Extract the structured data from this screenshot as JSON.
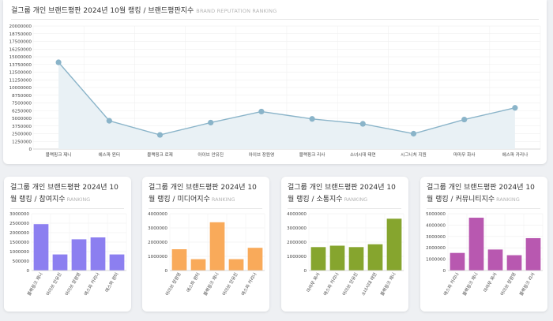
{
  "main": {
    "title": "걸그룹 개인 브랜드평판 2024년 10월 랭킹 / 브랜드평판지수",
    "subtitle": "BRAND REPUTATION RANKING"
  },
  "panels": [
    {
      "title": "걸그룹 개인 브랜드평판 2024년 10월 랭킹 / 참여지수",
      "subtitle": "RANKING"
    },
    {
      "title": "걸그룹 개인 브랜드평판 2024년 10월 랭킹 / 미디어지수",
      "subtitle": "RANKING"
    },
    {
      "title": "걸그룹 개인 브랜드평판 2024년 10월 랭킹 / 소통지수",
      "subtitle": "RANKING"
    },
    {
      "title": "걸그룹 개인 브랜드평판 2024년 10월 랭킹 / 커뮤니티지수",
      "subtitle": "RANKING"
    }
  ],
  "chart_data": [
    {
      "type": "area",
      "title": "걸그룹 개인 브랜드평판 2024년 10월 랭킹 / 브랜드평판지수",
      "categories": [
        "블랙핑크 제니",
        "에스파 윈터",
        "블랙핑크 로제",
        "아이브 안유진",
        "아이브 장원영",
        "블랙핑크 리사",
        "소녀시대 태연",
        "시그니처 지원",
        "마마무 화사",
        "에스파 카리나"
      ],
      "values": [
        14100000,
        4600000,
        2300000,
        4300000,
        6100000,
        4900000,
        4100000,
        2500000,
        4800000,
        6700000
      ],
      "ylim": [
        0,
        20000000
      ],
      "yticks": [
        0,
        1250000,
        2500000,
        3750000,
        5000000,
        6250000,
        7500000,
        8750000,
        10000000,
        11250000,
        12500000,
        13750000,
        15000000,
        16250000,
        17500000,
        18750000,
        20000000
      ],
      "grid": true,
      "color": "#8ab4c9",
      "fill": "#e9f1f5"
    },
    {
      "type": "bar",
      "title": "걸그룹 개인 브랜드평판 2024년 10월 랭킹 / 참여지수",
      "categories": [
        "블랙핑크 제니",
        "아이브 안유진",
        "아이브 장원영",
        "에스파 카리나",
        "에스파 윈터"
      ],
      "values": [
        2450000,
        850000,
        1650000,
        1750000,
        850000
      ],
      "ylim": [
        0,
        3000000
      ],
      "yticks": [
        0,
        500000,
        1000000,
        1500000,
        2000000,
        2500000,
        3000000
      ],
      "color": "#8c7ff0"
    },
    {
      "type": "bar",
      "title": "걸그룹 개인 브랜드평판 2024년 10월 랭킹 / 미디어지수",
      "categories": [
        "아이브 장원영",
        "에스파 윈터",
        "블랙핑크 제니",
        "아이브 안유진",
        "에스파 카리나"
      ],
      "values": [
        1500000,
        800000,
        3400000,
        800000,
        1600000
      ],
      "ylim": [
        0,
        4000000
      ],
      "yticks": [
        0,
        1000000,
        2000000,
        3000000,
        4000000
      ],
      "color": "#f9aa5a"
    },
    {
      "type": "bar",
      "title": "걸그룹 개인 브랜드평판 2024년 10월 랭킹 / 소통지수",
      "categories": [
        "마마무 화사",
        "에스파 카리나",
        "아이브 안유진",
        "소녀시대 태연",
        "블랙핑크 제니"
      ],
      "values": [
        1650000,
        1750000,
        1650000,
        1850000,
        3650000
      ],
      "ylim": [
        0,
        4000000
      ],
      "yticks": [
        0,
        1000000,
        2000000,
        3000000,
        4000000
      ],
      "color": "#86a52e"
    },
    {
      "type": "bar",
      "title": "걸그룹 개인 브랜드평판 2024년 10월 랭킹 / 커뮤니티지수",
      "categories": [
        "에스파 카리나",
        "블랙핑크 제니",
        "마마무 화사",
        "아이브 장원영",
        "블랙핑크 리사"
      ],
      "values": [
        1550000,
        4650000,
        1850000,
        1350000,
        2850000
      ],
      "ylim": [
        0,
        5000000
      ],
      "yticks": [
        0,
        1000000,
        2000000,
        3000000,
        4000000,
        5000000
      ],
      "color": "#b858b0"
    }
  ]
}
